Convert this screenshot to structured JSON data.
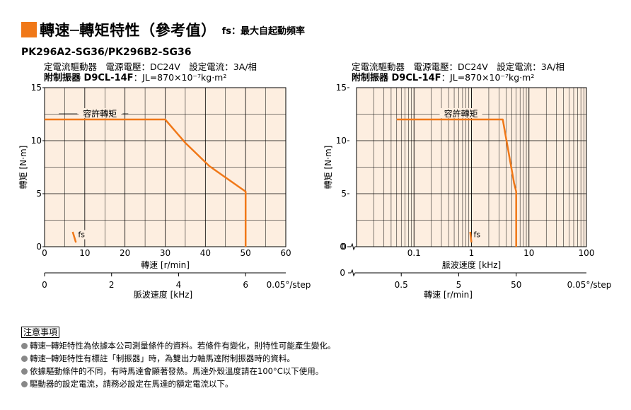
{
  "header": {
    "title": "轉速─轉矩特性（參考值）",
    "fs_note": "fs：最大自起動頻率",
    "model": "PK296A2-SG36/PK296B2-SG36"
  },
  "conditions": {
    "line1": "定電流驅動器　電源電壓：DC24V　設定電流：3A/相",
    "line2_bold": "附制振器 D9CL-14F",
    "line2_rest": "：JL=870×10⁻⁷kg·m²"
  },
  "chart_data": [
    {
      "type": "line",
      "x_scale": "linear",
      "ylabel": "轉矩 [N·m]",
      "ylim": [
        0,
        15
      ],
      "yticks": [
        "0",
        "5",
        "10",
        "15"
      ],
      "xlabel": "轉速 [r/min]",
      "xlim": [
        0,
        60
      ],
      "xticks": [
        "0",
        "10",
        "20",
        "30",
        "40",
        "50",
        "60"
      ],
      "x2label": "脈波速度 [kHz]",
      "x2ticks": [
        "0",
        "2",
        "4",
        "6",
        "0.05°/step"
      ],
      "x2values": [
        0,
        2,
        4,
        6
      ],
      "x2_per_x": 0.12,
      "holding_torque_label": "容許轉矩",
      "fs_label": "fs",
      "fs_mark": [
        [
          7.0,
          1.4
        ],
        [
          7.8,
          0.4
        ]
      ],
      "series": [
        {
          "x": [
            0,
            30,
            35,
            41,
            50,
            50
          ],
          "y": [
            12,
            12,
            9.8,
            7.6,
            5.2,
            0
          ]
        }
      ]
    },
    {
      "type": "line",
      "x_scale": "log",
      "ylabel": "轉矩 [N·m]",
      "ylim": [
        0,
        15
      ],
      "yticks": [
        "0",
        "5",
        "10",
        "15"
      ],
      "xlabel": "脈波速度 [kHz]",
      "xlim": [
        0.01,
        100
      ],
      "xticks": [
        "0",
        "0.1",
        "1",
        "10",
        "100"
      ],
      "xtick_values": [
        0.1,
        1,
        10,
        100
      ],
      "x2label": "轉速 [r/min]",
      "x2ticks": [
        "0",
        "0.5",
        "5",
        "50",
        "0.05°/step"
      ],
      "x2values": [
        0.5,
        5,
        50
      ],
      "x2_per_x": 8.333,
      "holding_torque_label": "容許轉矩",
      "fs_label": "fs",
      "fs_mark": [
        [
          0.95,
          1.4
        ],
        [
          1.0,
          0.4
        ]
      ],
      "series": [
        {
          "x": [
            0.05,
            3.5,
            5.5,
            6,
            6
          ],
          "y": [
            12,
            12,
            6,
            5.2,
            0
          ]
        }
      ]
    }
  ],
  "notes": {
    "heading": "注意事項",
    "items": [
      "轉速─轉矩特性為依據本公司測量條件的資料。若條件有變化，則特性可能產生變化。",
      "轉速─轉矩特性有標註「制振器」時，為雙出力軸馬達附制振器時的資料。",
      "依據驅動條件的不同，有時馬達會顯著發熱。馬達外殼溫度請在100°C以下使用。",
      "驅動器的設定電流，請務必設定在馬達的額定電流以下。"
    ]
  },
  "colors": {
    "accent": "#f07818",
    "plot_bg": "#fdeee0",
    "curve": "#f07818",
    "grid": "#000000"
  }
}
